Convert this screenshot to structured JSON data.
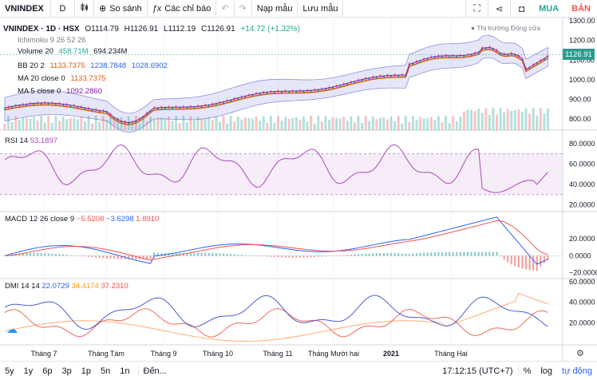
{
  "toolbar": {
    "symbol": "VNINDEX",
    "interval": "D",
    "compare_label": "So sánh",
    "indicators_label": "Các chỉ báo",
    "load_label": "Nạp mẫu",
    "save_label": "Lưu mẫu",
    "buy_label": "MUA",
    "sell_label": "BÁN"
  },
  "legend": {
    "title": "VNINDEX · 1D · HSX",
    "o": "O1114.79",
    "h": "H1126.91",
    "l": "L1112.19",
    "c": "C1126.91",
    "chg": "+14.72 (+1.32%)",
    "ichimoku": "Ichimoku 9 26 52 26",
    "volume_label": "Volume 20",
    "volume_v1": "458.71M",
    "volume_v2": "694.234M",
    "bb_label": "BB 20 2",
    "bb_v1": "1133.7375",
    "bb_v2": "1238.7848",
    "bb_v3": "1028.6902",
    "ma20_label": "MA 20 close 0",
    "ma20_v": "1133.7375",
    "ma5_label": "MA 5 close 0",
    "ma5_v": "1092.2860",
    "market_status": "Thị trường Đóng cửa"
  },
  "price_axis": {
    "ticks": [
      "1300.00",
      "1200.00",
      "1100.00",
      "1000.00",
      "900.00",
      "800.00"
    ],
    "last_price": "1126.91"
  },
  "rsi": {
    "label": "RSI 14",
    "value": "53.1897",
    "ticks": [
      "80.0000",
      "60.0000",
      "40.0000",
      "20.0000"
    ]
  },
  "macd": {
    "label": "MACD 12 26 close 9",
    "v1": "−5.5208",
    "v2": "−3.6298",
    "v3": "1.8910",
    "ticks": [
      "20.0000",
      "0.0000",
      "−20.0000"
    ]
  },
  "dmi": {
    "label": "DMI 14 14",
    "v1": "22.0729",
    "v2": "34.4174",
    "v3": "37.2310",
    "ticks": [
      "60.0000",
      "40.0000",
      "20.0000"
    ]
  },
  "time_axis": [
    "Tháng 7",
    "Tháng Tám",
    "Tháng 9",
    "Tháng 10",
    "Tháng 11",
    "Tháng Mười hai",
    "2021",
    "Tháng Hai"
  ],
  "bottom": {
    "ranges": [
      "5y",
      "1y",
      "6p",
      "3p",
      "1p",
      "5n",
      "1n"
    ],
    "goto": "Đến...",
    "time": "17:12:15 (UTC+7)",
    "pct": "%",
    "log": "log",
    "auto": "tự động"
  },
  "colors": {
    "up": "#26a69a",
    "down": "#ef5350",
    "ma20": "#e8590c",
    "ma5": "#7b1fa2",
    "bb_fill": "#c5c8f0",
    "rsi": "#ab47bc",
    "macd": "#2962ff",
    "signal": "#ef5350",
    "dmi_plus": "#4a5bd4",
    "dmi_minus": "#ef6c5a",
    "adx": "#ffab76"
  }
}
